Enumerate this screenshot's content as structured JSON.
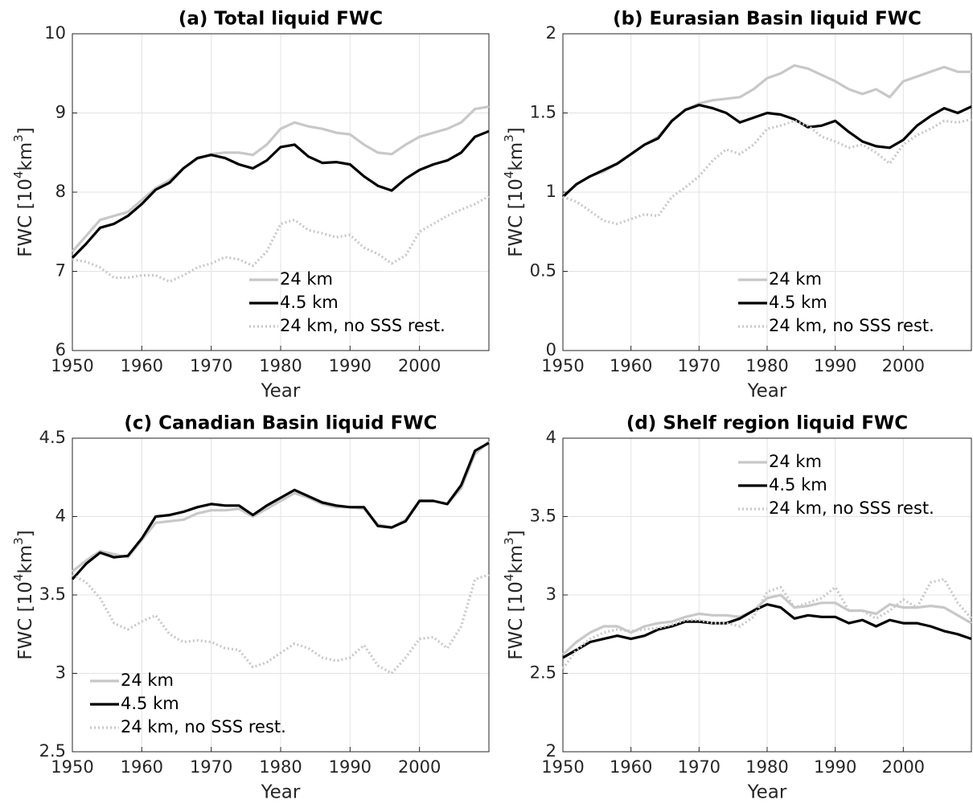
{
  "chart_data": [
    {
      "type": "line",
      "title": "(a) Total liquid FWC",
      "x_label": "Year",
      "y_label": [
        "FWC [10",
        "4",
        "km",
        "3",
        "]"
      ],
      "x": [
        1950,
        1952,
        1954,
        1956,
        1958,
        1960,
        1962,
        1964,
        1966,
        1968,
        1970,
        1972,
        1974,
        1976,
        1978,
        1980,
        1982,
        1984,
        1986,
        1988,
        1990,
        1992,
        1994,
        1996,
        1998,
        2000,
        2002,
        2004,
        2006,
        2008,
        2010
      ],
      "xlim": [
        1950,
        2010
      ],
      "xticks": [
        1950,
        1960,
        1970,
        1980,
        1990,
        2000
      ],
      "ylim": [
        6,
        10
      ],
      "yticks": [
        6,
        7,
        8,
        9,
        10
      ],
      "grid": true,
      "legend": "lower center",
      "series": [
        {
          "name": "24 km",
          "color": "#c8c8c8",
          "linestyle": "solid",
          "values": [
            7.25,
            7.45,
            7.65,
            7.7,
            7.75,
            7.9,
            8.05,
            8.15,
            8.3,
            8.42,
            8.48,
            8.5,
            8.5,
            8.47,
            8.6,
            8.8,
            8.88,
            8.83,
            8.8,
            8.75,
            8.73,
            8.6,
            8.5,
            8.48,
            8.6,
            8.7,
            8.75,
            8.8,
            8.88,
            9.05,
            9.08
          ]
        },
        {
          "name": "4.5 km",
          "color": "#000000",
          "linestyle": "solid",
          "values": [
            7.17,
            7.35,
            7.55,
            7.6,
            7.7,
            7.85,
            8.03,
            8.12,
            8.3,
            8.43,
            8.47,
            8.43,
            8.35,
            8.3,
            8.4,
            8.57,
            8.6,
            8.45,
            8.37,
            8.38,
            8.35,
            8.2,
            8.08,
            8.02,
            8.17,
            8.28,
            8.35,
            8.4,
            8.5,
            8.7,
            8.77
          ]
        },
        {
          "name": "24 km, no SSS rest.",
          "color": "#c8c8c8",
          "linestyle": "dotted",
          "values": [
            7.15,
            7.12,
            7.05,
            6.92,
            6.92,
            6.95,
            6.95,
            6.87,
            6.95,
            7.05,
            7.1,
            7.18,
            7.15,
            7.07,
            7.25,
            7.6,
            7.65,
            7.52,
            7.48,
            7.43,
            7.46,
            7.3,
            7.22,
            7.1,
            7.2,
            7.5,
            7.6,
            7.7,
            7.78,
            7.85,
            7.95
          ]
        }
      ]
    },
    {
      "type": "line",
      "title": "(b) Eurasian Basin liquid FWC",
      "x_label": "Year",
      "y_label": [
        "FWC [10",
        "4",
        "km",
        "3",
        "]"
      ],
      "x": [
        1950,
        1952,
        1954,
        1956,
        1958,
        1960,
        1962,
        1964,
        1966,
        1968,
        1970,
        1972,
        1974,
        1976,
        1978,
        1980,
        1982,
        1984,
        1986,
        1988,
        1990,
        1992,
        1994,
        1996,
        1998,
        2000,
        2002,
        2004,
        2006,
        2008,
        2010
      ],
      "xlim": [
        1950,
        2010
      ],
      "xticks": [
        1950,
        1960,
        1970,
        1980,
        1990,
        2000
      ],
      "ylim": [
        0,
        2
      ],
      "yticks": [
        0,
        0.5,
        1,
        1.5,
        2
      ],
      "grid": true,
      "legend": "lower right",
      "series": [
        {
          "name": "24 km",
          "color": "#c8c8c8",
          "linestyle": "solid",
          "values": [
            0.97,
            1.05,
            1.1,
            1.13,
            1.18,
            1.24,
            1.3,
            1.35,
            1.45,
            1.52,
            1.56,
            1.58,
            1.59,
            1.6,
            1.65,
            1.72,
            1.75,
            1.8,
            1.78,
            1.74,
            1.7,
            1.65,
            1.62,
            1.65,
            1.6,
            1.7,
            1.73,
            1.76,
            1.79,
            1.76,
            1.76
          ]
        },
        {
          "name": "4.5 km",
          "color": "#000000",
          "linestyle": "solid",
          "values": [
            0.97,
            1.05,
            1.1,
            1.14,
            1.18,
            1.24,
            1.3,
            1.34,
            1.45,
            1.52,
            1.55,
            1.53,
            1.5,
            1.44,
            1.47,
            1.5,
            1.49,
            1.46,
            1.41,
            1.42,
            1.45,
            1.38,
            1.32,
            1.29,
            1.28,
            1.33,
            1.42,
            1.48,
            1.53,
            1.5,
            1.54
          ]
        },
        {
          "name": "24 km, no SSS rest.",
          "color": "#c8c8c8",
          "linestyle": "dotted",
          "values": [
            0.97,
            0.94,
            0.88,
            0.82,
            0.8,
            0.83,
            0.86,
            0.85,
            0.97,
            1.03,
            1.1,
            1.2,
            1.27,
            1.24,
            1.3,
            1.4,
            1.42,
            1.45,
            1.42,
            1.35,
            1.32,
            1.28,
            1.3,
            1.25,
            1.18,
            1.3,
            1.36,
            1.4,
            1.45,
            1.44,
            1.46
          ]
        }
      ]
    },
    {
      "type": "line",
      "title": "(c) Canadian Basin liquid FWC",
      "x_label": "Year",
      "y_label": [
        "FWC [10",
        "4",
        "km",
        "3",
        "]"
      ],
      "x": [
        1950,
        1952,
        1954,
        1956,
        1958,
        1960,
        1962,
        1964,
        1966,
        1968,
        1970,
        1972,
        1974,
        1976,
        1978,
        1980,
        1982,
        1984,
        1986,
        1988,
        1990,
        1992,
        1994,
        1996,
        1998,
        2000,
        2002,
        2004,
        2006,
        2008,
        2010
      ],
      "xlim": [
        1950,
        2010
      ],
      "xticks": [
        1950,
        1960,
        1970,
        1980,
        1990,
        2000
      ],
      "ylim": [
        2.5,
        4.5
      ],
      "yticks": [
        2.5,
        3,
        3.5,
        4,
        4.5
      ],
      "grid": true,
      "legend": "lower left",
      "series": [
        {
          "name": "24 km",
          "color": "#c8c8c8",
          "linestyle": "solid",
          "values": [
            3.65,
            3.72,
            3.78,
            3.76,
            3.74,
            3.85,
            3.96,
            3.97,
            3.98,
            4.02,
            4.04,
            4.04,
            4.05,
            4.0,
            4.05,
            4.1,
            4.15,
            4.12,
            4.08,
            4.06,
            4.06,
            4.05,
            3.95,
            3.93,
            3.98,
            4.1,
            4.1,
            4.08,
            4.18,
            4.4,
            4.48
          ]
        },
        {
          "name": "4.5 km",
          "color": "#000000",
          "linestyle": "solid",
          "values": [
            3.6,
            3.7,
            3.77,
            3.74,
            3.75,
            3.86,
            4.0,
            4.01,
            4.03,
            4.06,
            4.08,
            4.07,
            4.07,
            4.01,
            4.07,
            4.12,
            4.17,
            4.13,
            4.09,
            4.07,
            4.06,
            4.06,
            3.94,
            3.93,
            3.97,
            4.1,
            4.1,
            4.08,
            4.2,
            4.42,
            4.47
          ]
        },
        {
          "name": "24 km, no SSS rest.",
          "color": "#c8c8c8",
          "linestyle": "dotted",
          "values": [
            3.63,
            3.58,
            3.48,
            3.32,
            3.28,
            3.33,
            3.37,
            3.25,
            3.2,
            3.21,
            3.2,
            3.16,
            3.15,
            3.04,
            3.07,
            3.13,
            3.19,
            3.16,
            3.1,
            3.08,
            3.1,
            3.18,
            3.05,
            3.0,
            3.1,
            3.22,
            3.23,
            3.16,
            3.3,
            3.6,
            3.63
          ]
        }
      ]
    },
    {
      "type": "line",
      "title": "(d) Shelf region liquid FWC",
      "x_label": "Year",
      "y_label": [
        "FWC [10",
        "4",
        "km",
        "3",
        "]"
      ],
      "x": [
        1950,
        1952,
        1954,
        1956,
        1958,
        1960,
        1962,
        1964,
        1966,
        1968,
        1970,
        1972,
        1974,
        1976,
        1978,
        1980,
        1982,
        1984,
        1986,
        1988,
        1990,
        1992,
        1994,
        1996,
        1998,
        2000,
        2002,
        2004,
        2006,
        2008,
        2010
      ],
      "xlim": [
        1950,
        2010
      ],
      "xticks": [
        1950,
        1960,
        1970,
        1980,
        1990,
        2000
      ],
      "ylim": [
        2,
        4
      ],
      "yticks": [
        2,
        2.5,
        3,
        3.5,
        4
      ],
      "grid": true,
      "legend": "upper right",
      "series": [
        {
          "name": "24 km",
          "color": "#c8c8c8",
          "linestyle": "solid",
          "values": [
            2.62,
            2.7,
            2.76,
            2.8,
            2.8,
            2.76,
            2.8,
            2.82,
            2.83,
            2.86,
            2.88,
            2.87,
            2.87,
            2.86,
            2.9,
            2.98,
            3.0,
            2.92,
            2.93,
            2.95,
            2.95,
            2.9,
            2.9,
            2.88,
            2.94,
            2.92,
            2.92,
            2.93,
            2.92,
            2.87,
            2.82
          ]
        },
        {
          "name": "4.5 km",
          "color": "#000000",
          "linestyle": "solid",
          "values": [
            2.6,
            2.65,
            2.7,
            2.72,
            2.74,
            2.72,
            2.74,
            2.78,
            2.8,
            2.83,
            2.83,
            2.82,
            2.82,
            2.85,
            2.9,
            2.94,
            2.92,
            2.85,
            2.87,
            2.86,
            2.86,
            2.82,
            2.84,
            2.8,
            2.84,
            2.82,
            2.82,
            2.8,
            2.77,
            2.75,
            2.72
          ]
        },
        {
          "name": "24 km, no SSS rest.",
          "color": "#c8c8c8",
          "linestyle": "dotted",
          "values": [
            2.53,
            2.65,
            2.72,
            2.76,
            2.78,
            2.77,
            2.78,
            2.79,
            2.81,
            2.84,
            2.84,
            2.82,
            2.82,
            2.8,
            2.86,
            3.02,
            3.05,
            2.92,
            2.95,
            2.98,
            3.05,
            2.9,
            2.9,
            2.85,
            2.9,
            2.97,
            2.92,
            3.08,
            3.1,
            2.95,
            2.85
          ]
        }
      ]
    }
  ]
}
